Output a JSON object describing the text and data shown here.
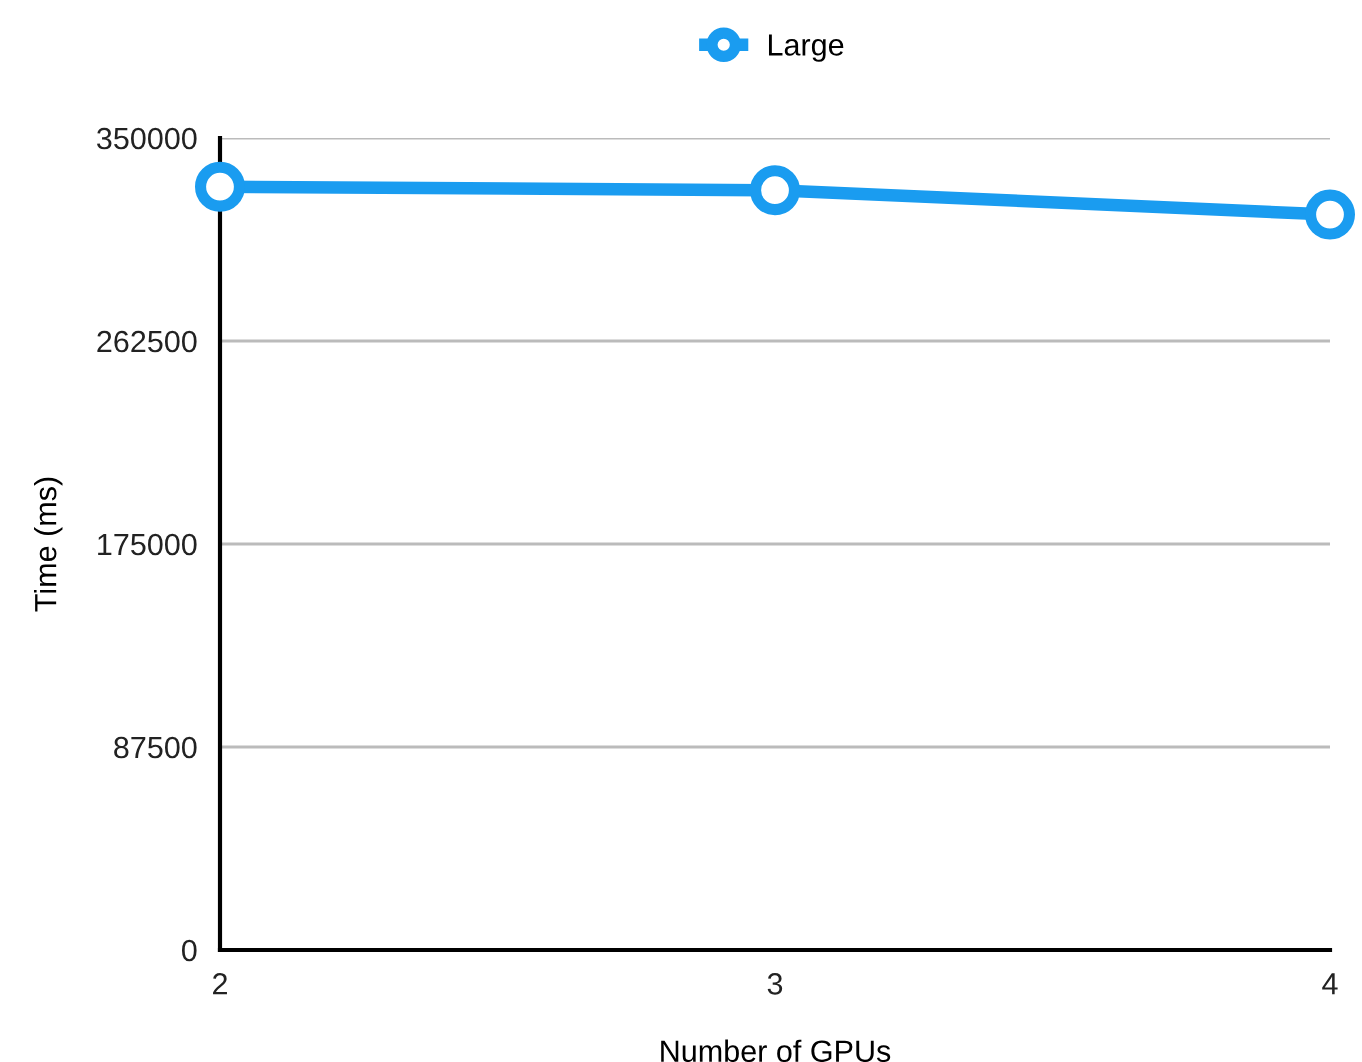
{
  "chart_data": {
    "type": "line",
    "xlabel": "Number of GPUs",
    "ylabel": "Time (ms)",
    "x": [
      2,
      3,
      4
    ],
    "series": [
      {
        "name": "Large",
        "color": "#1a9cf0",
        "values": [
          329000,
          327500,
          317000
        ]
      }
    ],
    "xlim": [
      2,
      4
    ],
    "xticks": [
      2,
      3,
      4
    ],
    "ylim": [
      0,
      350000
    ],
    "yticks": [
      0,
      87500,
      175000,
      262500,
      350000
    ],
    "grid": "y",
    "legend": "top",
    "marker": "circle",
    "line_style": "solid"
  }
}
